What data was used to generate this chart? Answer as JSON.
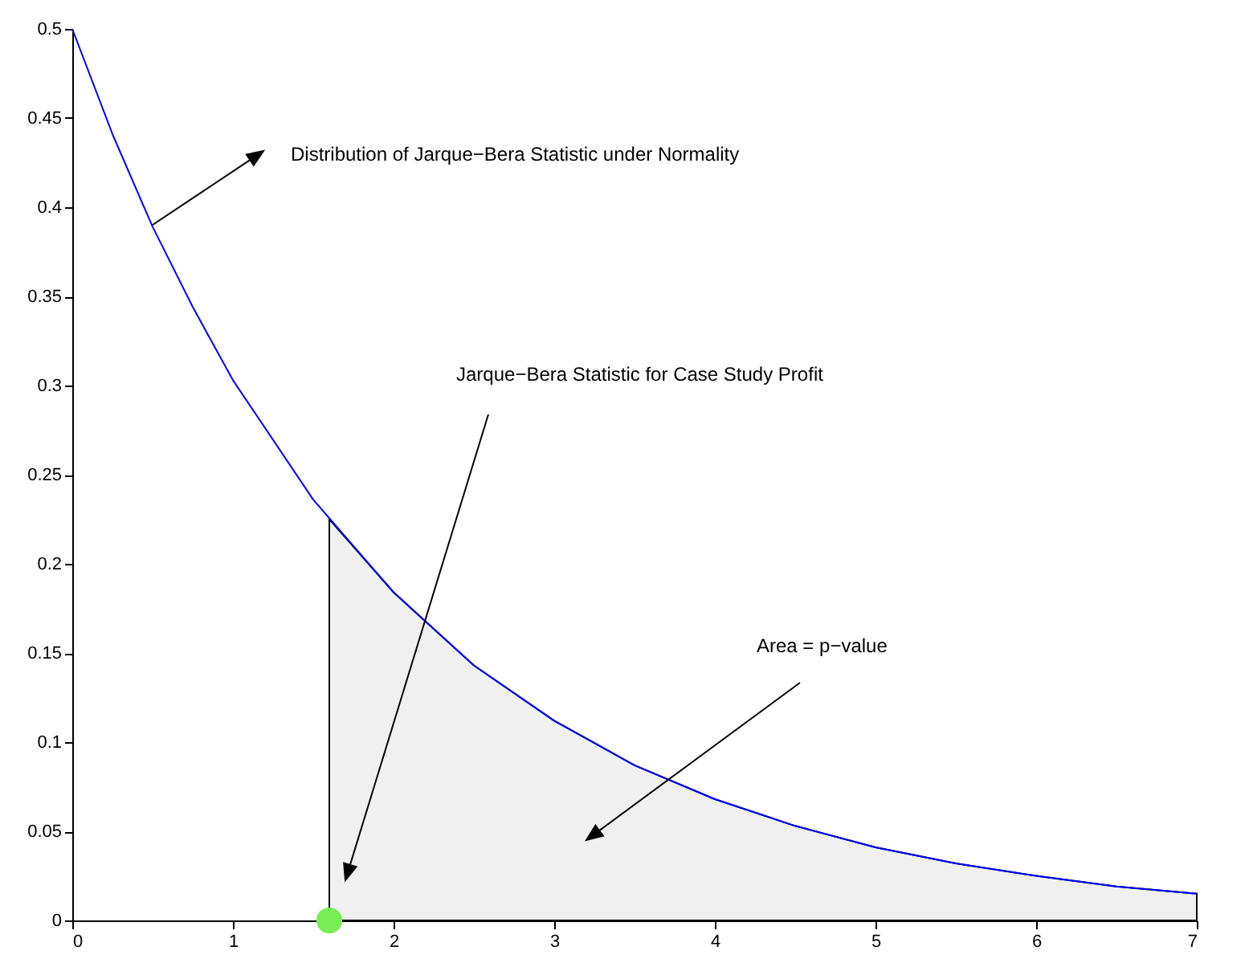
{
  "chart_data": {
    "type": "line",
    "xlim": [
      0,
      7
    ],
    "ylim": [
      0,
      0.5
    ],
    "xticks": [
      0,
      1,
      2,
      3,
      4,
      5,
      6,
      7
    ],
    "yticks": [
      0,
      0.05,
      0.1,
      0.15,
      0.2,
      0.25,
      0.3,
      0.35,
      0.4,
      0.45,
      0.5
    ],
    "grid": false,
    "series": [
      {
        "type": "area",
        "color": "#000000",
        "x": [
          1.6,
          2,
          2.5,
          3,
          3.5,
          4,
          4.5,
          5,
          5.5,
          6,
          6.5,
          7
        ],
        "values": [
          0.225,
          0.184,
          0.143,
          0.112,
          0.087,
          0.068,
          0.053,
          0.041,
          0.032,
          0.025,
          0.019,
          0.015
        ]
      },
      {
        "type": "line",
        "color": "#0000ff",
        "x": [
          0,
          0.25,
          0.5,
          0.75,
          1,
          1.5,
          2,
          2.5,
          3,
          3.5,
          4,
          4.5,
          5,
          5.5,
          6,
          6.5,
          7
        ],
        "values": [
          0.5,
          0.441,
          0.389,
          0.344,
          0.303,
          0.236,
          0.184,
          0.143,
          0.112,
          0.087,
          0.068,
          0.053,
          0.041,
          0.032,
          0.025,
          0.019,
          0.015
        ]
      },
      {
        "type": "scatter",
        "color": "#77ee55",
        "marker": "circle",
        "x": [
          1.6
        ],
        "values": [
          0
        ]
      }
    ],
    "annotations": [
      "Distribution of Jarque−Bera Statistic under Normality",
      "Jarque−Bera Statistic for Case Study Profit",
      "Area = p−value"
    ]
  }
}
